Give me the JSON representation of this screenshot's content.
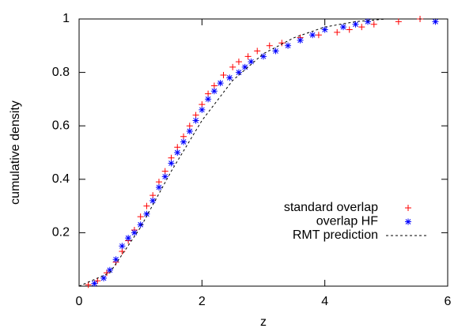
{
  "chart_data": {
    "type": "scatter",
    "x_label": "z",
    "y_label": "cumulative density",
    "xlim": [
      0,
      6
    ],
    "xticks": [
      0,
      2,
      4,
      6
    ],
    "ylim": [
      0,
      1
    ],
    "yticks": [
      0.2,
      0.4,
      0.6,
      0.8,
      1
    ],
    "legend": "lower right",
    "series": [
      {
        "name": "standard overlap",
        "color": "#ff0000",
        "marker": "plus",
        "x": [
          0.15,
          0.3,
          0.45,
          0.6,
          0.7,
          0.8,
          0.9,
          1.0,
          1.1,
          1.2,
          1.3,
          1.4,
          1.5,
          1.6,
          1.7,
          1.8,
          1.9,
          2.0,
          2.1,
          2.2,
          2.35,
          2.5,
          2.6,
          2.75,
          2.9,
          3.1,
          3.3,
          3.6,
          3.9,
          4.2,
          4.4,
          4.6,
          4.8,
          5.2,
          5.55
        ],
        "values": [
          0.005,
          0.02,
          0.05,
          0.09,
          0.13,
          0.17,
          0.21,
          0.26,
          0.3,
          0.34,
          0.39,
          0.43,
          0.48,
          0.52,
          0.56,
          0.6,
          0.64,
          0.68,
          0.72,
          0.75,
          0.79,
          0.82,
          0.84,
          0.86,
          0.88,
          0.9,
          0.91,
          0.93,
          0.94,
          0.95,
          0.96,
          0.97,
          0.98,
          0.99,
          1.0
        ]
      },
      {
        "name": "overlap HF",
        "color": "#0000ff",
        "marker": "star",
        "x": [
          0.25,
          0.4,
          0.5,
          0.6,
          0.7,
          0.8,
          0.9,
          1.0,
          1.1,
          1.2,
          1.3,
          1.4,
          1.5,
          1.6,
          1.7,
          1.8,
          1.9,
          2.0,
          2.1,
          2.2,
          2.3,
          2.45,
          2.6,
          2.7,
          2.8,
          3.0,
          3.2,
          3.4,
          3.6,
          3.8,
          4.0,
          4.3,
          4.5,
          4.7,
          5.8
        ],
        "values": [
          0.01,
          0.03,
          0.06,
          0.1,
          0.15,
          0.18,
          0.2,
          0.23,
          0.27,
          0.32,
          0.37,
          0.41,
          0.46,
          0.5,
          0.54,
          0.58,
          0.62,
          0.66,
          0.7,
          0.73,
          0.76,
          0.78,
          0.8,
          0.82,
          0.84,
          0.86,
          0.88,
          0.9,
          0.92,
          0.94,
          0.96,
          0.97,
          0.98,
          0.99,
          0.99
        ]
      },
      {
        "name": "RMT prediction",
        "color": "#000000",
        "line": "dashed",
        "x": [
          0,
          0.5,
          1,
          1.5,
          2,
          2.5,
          3,
          3.5,
          4,
          4.5,
          5,
          5.5,
          6
        ],
        "values": [
          0,
          0.05,
          0.22,
          0.43,
          0.62,
          0.77,
          0.87,
          0.93,
          0.97,
          0.99,
          1,
          1,
          1
        ]
      }
    ]
  }
}
